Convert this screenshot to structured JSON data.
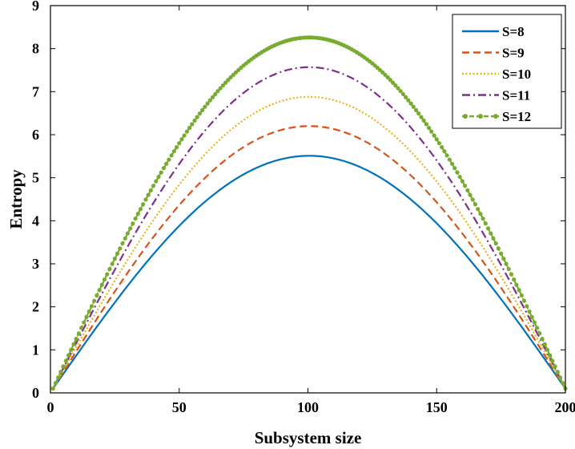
{
  "chart_data": {
    "type": "line",
    "title": "",
    "xlabel": "Subsystem size",
    "ylabel": "Entropy",
    "xlim": [
      0,
      200
    ],
    "ylim": [
      0,
      9
    ],
    "xticks": [
      0,
      50,
      100,
      150,
      200
    ],
    "yticks": [
      0,
      1,
      2,
      3,
      4,
      5,
      6,
      7,
      8,
      9
    ],
    "grid": false,
    "legend_position": "top-right",
    "x_range": [
      1,
      200
    ],
    "series": [
      {
        "name": "S=8",
        "color": "#0072BD",
        "style": "solid",
        "peak_x": 100,
        "peak_y": 5.51,
        "end_y": 0.1
      },
      {
        "name": "S=9",
        "color": "#D95319",
        "style": "dashed",
        "peak_x": 100,
        "peak_y": 6.2,
        "end_y": 0.1
      },
      {
        "name": "S=10",
        "color": "#EDB120",
        "style": "dotted",
        "peak_x": 100,
        "peak_y": 6.88,
        "end_y": 0.1
      },
      {
        "name": "S=11",
        "color": "#7E2F8E",
        "style": "dashdot",
        "peak_x": 100,
        "peak_y": 7.57,
        "end_y": 0.1
      },
      {
        "name": "S=12",
        "color": "#77AC30",
        "style": "dashed-marker",
        "peak_x": 100,
        "peak_y": 8.26,
        "end_y": 0.1
      }
    ]
  }
}
